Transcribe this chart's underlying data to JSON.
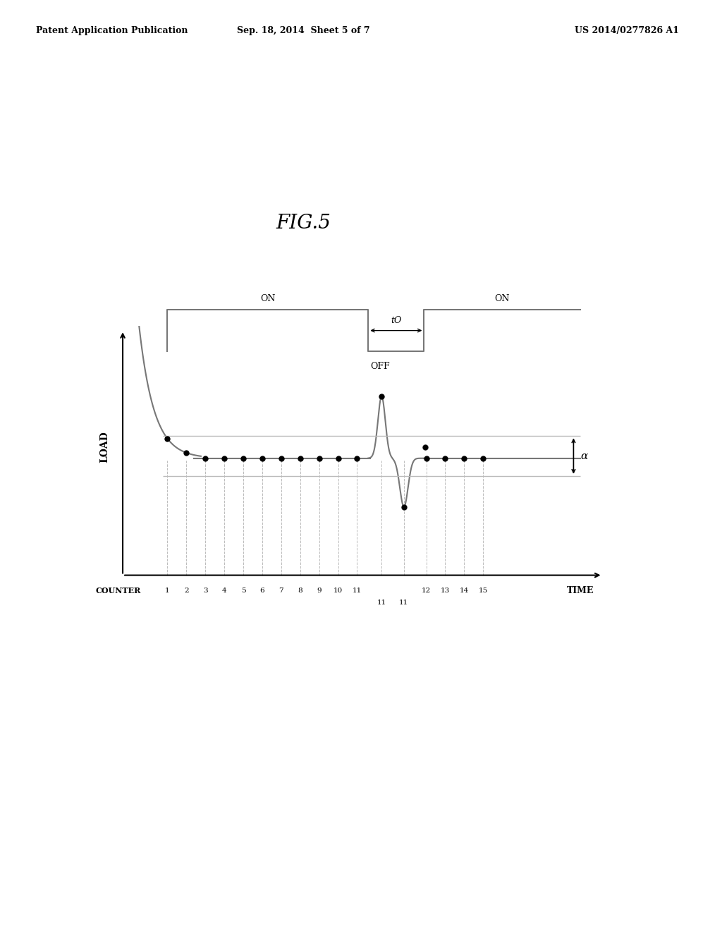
{
  "title": "FIG.5",
  "header_left": "Patent Application Publication",
  "header_mid": "Sep. 18, 2014  Sheet 5 of 7",
  "header_right": "US 2014/0277826 A1",
  "bg_color": "#ffffff",
  "text_color": "#000000",
  "gray_color": "#777777",
  "light_gray": "#bbbbbb",
  "xlabel": "TIME",
  "ylabel": "LOAD",
  "counter_label": "COUNTER",
  "alpha_label": "α",
  "on_label": "ON",
  "off_label": "OFF",
  "to_label": "tO"
}
